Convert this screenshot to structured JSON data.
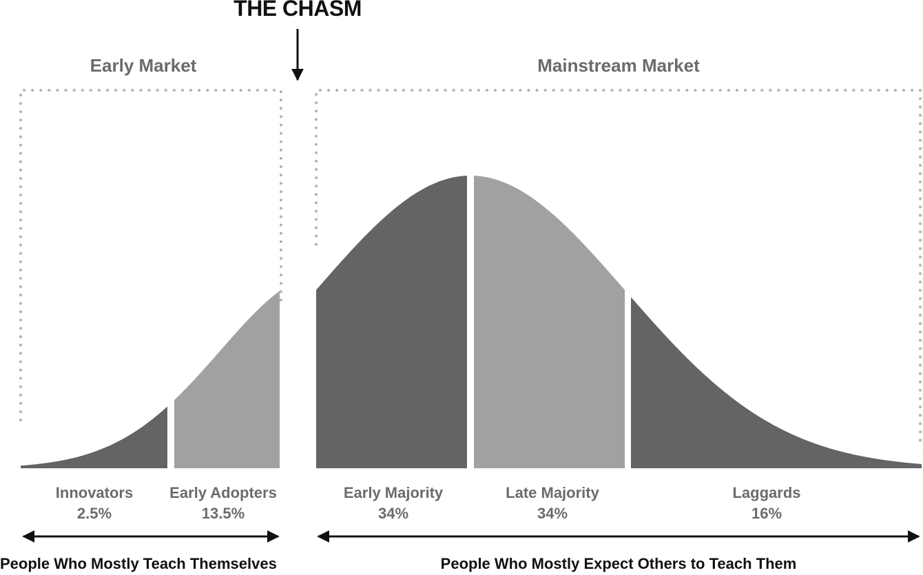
{
  "chasm": {
    "label": "THE CHASM"
  },
  "markets": [
    {
      "title": "Early Market"
    },
    {
      "title": "Mainstream Market"
    }
  ],
  "segments": [
    {
      "name": "Innovators",
      "percent": "2.5%"
    },
    {
      "name": "Early Adopters",
      "percent": "13.5%"
    },
    {
      "name": "Early Majority",
      "percent": "34%"
    },
    {
      "name": "Late Majority",
      "percent": "34%"
    },
    {
      "name": "Laggards",
      "percent": "16%"
    }
  ],
  "groups": [
    {
      "label": "People Who Mostly Teach Themselves"
    },
    {
      "label": "People Who Mostly Expect Others to Teach Them"
    }
  ],
  "colors": {
    "dark_fill": "#636466",
    "light_fill": "#a0a1a3",
    "text_gray": "#6a6b6d",
    "text_black": "#111111",
    "dotted_border": "#b3b3b3"
  }
}
